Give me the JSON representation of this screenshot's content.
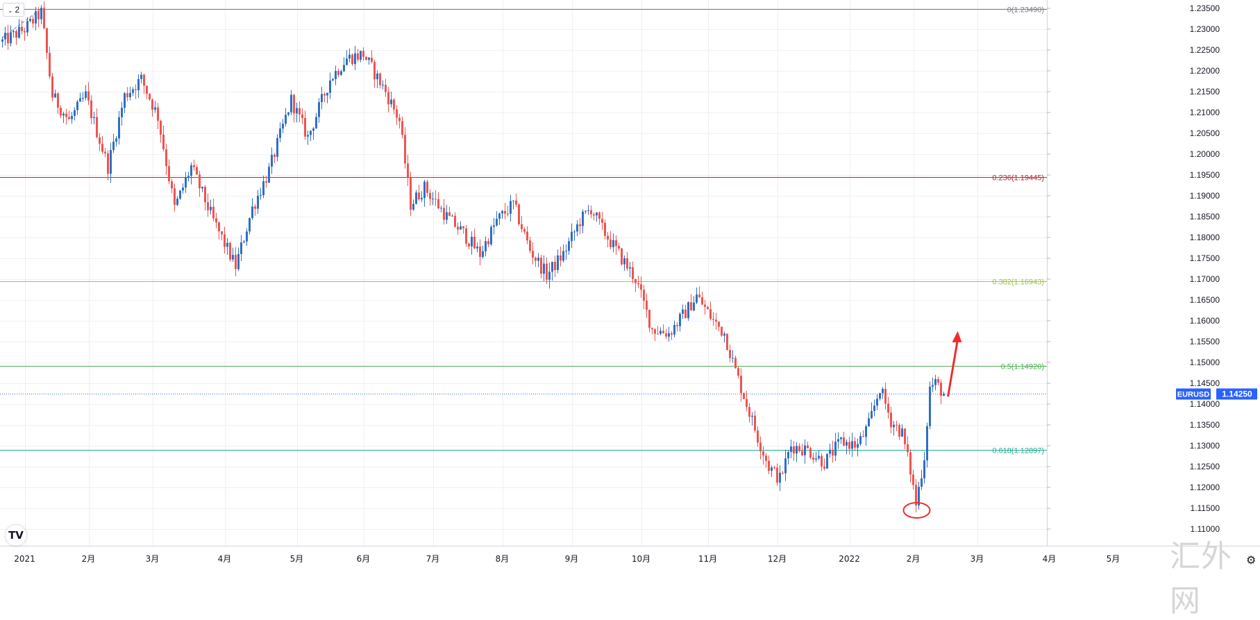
{
  "toolbar": {
    "interval_label": "2",
    "interval_icon": "chevron-down-icon"
  },
  "colors": {
    "up": "#2962ff",
    "up_real": "#2e6fc4",
    "down": "#ef5350",
    "grid": "#eef0f3",
    "fib0": "#787b86",
    "fib236": "#b22833",
    "fib382": "#9bc53d",
    "fib5": "#4caf50",
    "fib618": "#22ab94",
    "price_tag": "#2962ff",
    "arrow": "#ef2d2d"
  },
  "chart_data": {
    "type": "candlestick",
    "symbol": "EURUSD",
    "last_price": "1.14250",
    "last_price_value": 1.1425,
    "ylim": [
      1.1075,
      1.2352
    ],
    "y_ticks": [
      "1.23500",
      "1.23000",
      "1.22500",
      "1.22000",
      "1.21500",
      "1.21000",
      "1.20500",
      "1.20000",
      "1.19500",
      "1.19000",
      "1.18500",
      "1.18000",
      "1.17500",
      "1.17000",
      "1.16500",
      "1.16000",
      "1.15500",
      "1.15000",
      "1.14500",
      "1.14000",
      "1.13500",
      "1.13000",
      "1.12500",
      "1.12000",
      "1.11500",
      "1.11000"
    ],
    "x_ticks": [
      {
        "label": "2021",
        "index": 8
      },
      {
        "label": "2月",
        "index": 31
      },
      {
        "label": "3月",
        "index": 54
      },
      {
        "label": "4月",
        "index": 80
      },
      {
        "label": "5月",
        "index": 106
      },
      {
        "label": "6月",
        "index": 130
      },
      {
        "label": "7月",
        "index": 155
      },
      {
        "label": "8月",
        "index": 180
      },
      {
        "label": "9月",
        "index": 205
      },
      {
        "label": "10月",
        "index": 230
      },
      {
        "label": "11月",
        "index": 254
      },
      {
        "label": "12月",
        "index": 279
      },
      {
        "label": "2022",
        "index": 305
      },
      {
        "label": "2月",
        "index": 328
      },
      {
        "label": "3月",
        "index": 351
      },
      {
        "label": "4月",
        "index": 377
      },
      {
        "label": "5月",
        "index": 400
      }
    ],
    "fib_levels": [
      {
        "label": "0(1.23490)",
        "value": 1.2349,
        "color_key": "fib0"
      },
      {
        "label": "0.236(1.19445)",
        "value": 1.19445,
        "color_key": "fib236"
      },
      {
        "label": "0.382(1.16943)",
        "value": 1.16943,
        "color_key": "fib382"
      },
      {
        "label": "0.5(1.14920)",
        "value": 1.1492,
        "color_key": "fib5"
      },
      {
        "label": "0.618(1.12897)",
        "value": 1.12897,
        "color_key": "fib618"
      }
    ],
    "anchors": [
      [
        0,
        1.227
      ],
      [
        8,
        1.23
      ],
      [
        14,
        1.234
      ],
      [
        18,
        1.214
      ],
      [
        24,
        1.208
      ],
      [
        30,
        1.214
      ],
      [
        38,
        1.197
      ],
      [
        44,
        1.214
      ],
      [
        50,
        1.218
      ],
      [
        56,
        1.209
      ],
      [
        62,
        1.187
      ],
      [
        68,
        1.197
      ],
      [
        76,
        1.184
      ],
      [
        84,
        1.173
      ],
      [
        90,
        1.187
      ],
      [
        96,
        1.196
      ],
      [
        104,
        1.213
      ],
      [
        110,
        1.204
      ],
      [
        118,
        1.218
      ],
      [
        124,
        1.223
      ],
      [
        130,
        1.224
      ],
      [
        138,
        1.215
      ],
      [
        143,
        1.208
      ],
      [
        147,
        1.188
      ],
      [
        152,
        1.192
      ],
      [
        160,
        1.185
      ],
      [
        166,
        1.181
      ],
      [
        172,
        1.176
      ],
      [
        178,
        1.184
      ],
      [
        184,
        1.188
      ],
      [
        190,
        1.177
      ],
      [
        196,
        1.171
      ],
      [
        202,
        1.176
      ],
      [
        208,
        1.184
      ],
      [
        212,
        1.187
      ],
      [
        216,
        1.182
      ],
      [
        222,
        1.176
      ],
      [
        228,
        1.17
      ],
      [
        234,
        1.158
      ],
      [
        240,
        1.157
      ],
      [
        246,
        1.162
      ],
      [
        250,
        1.166
      ],
      [
        256,
        1.16
      ],
      [
        260,
        1.157
      ],
      [
        264,
        1.148
      ],
      [
        268,
        1.14
      ],
      [
        272,
        1.132
      ],
      [
        276,
        1.125
      ],
      [
        280,
        1.122
      ],
      [
        284,
        1.13
      ],
      [
        290,
        1.129
      ],
      [
        296,
        1.126
      ],
      [
        302,
        1.131
      ],
      [
        308,
        1.13
      ],
      [
        312,
        1.135
      ],
      [
        316,
        1.144
      ],
      [
        320,
        1.136
      ],
      [
        324,
        1.133
      ],
      [
        327,
        1.124
      ],
      [
        329,
        1.116
      ],
      [
        332,
        1.1275
      ],
      [
        334,
        1.144
      ],
      [
        336,
        1.145
      ],
      [
        339,
        1.1425
      ]
    ],
    "arrow_note": "red upward arrow from latest candle",
    "circle_note": "red ellipse around recent low"
  }
}
